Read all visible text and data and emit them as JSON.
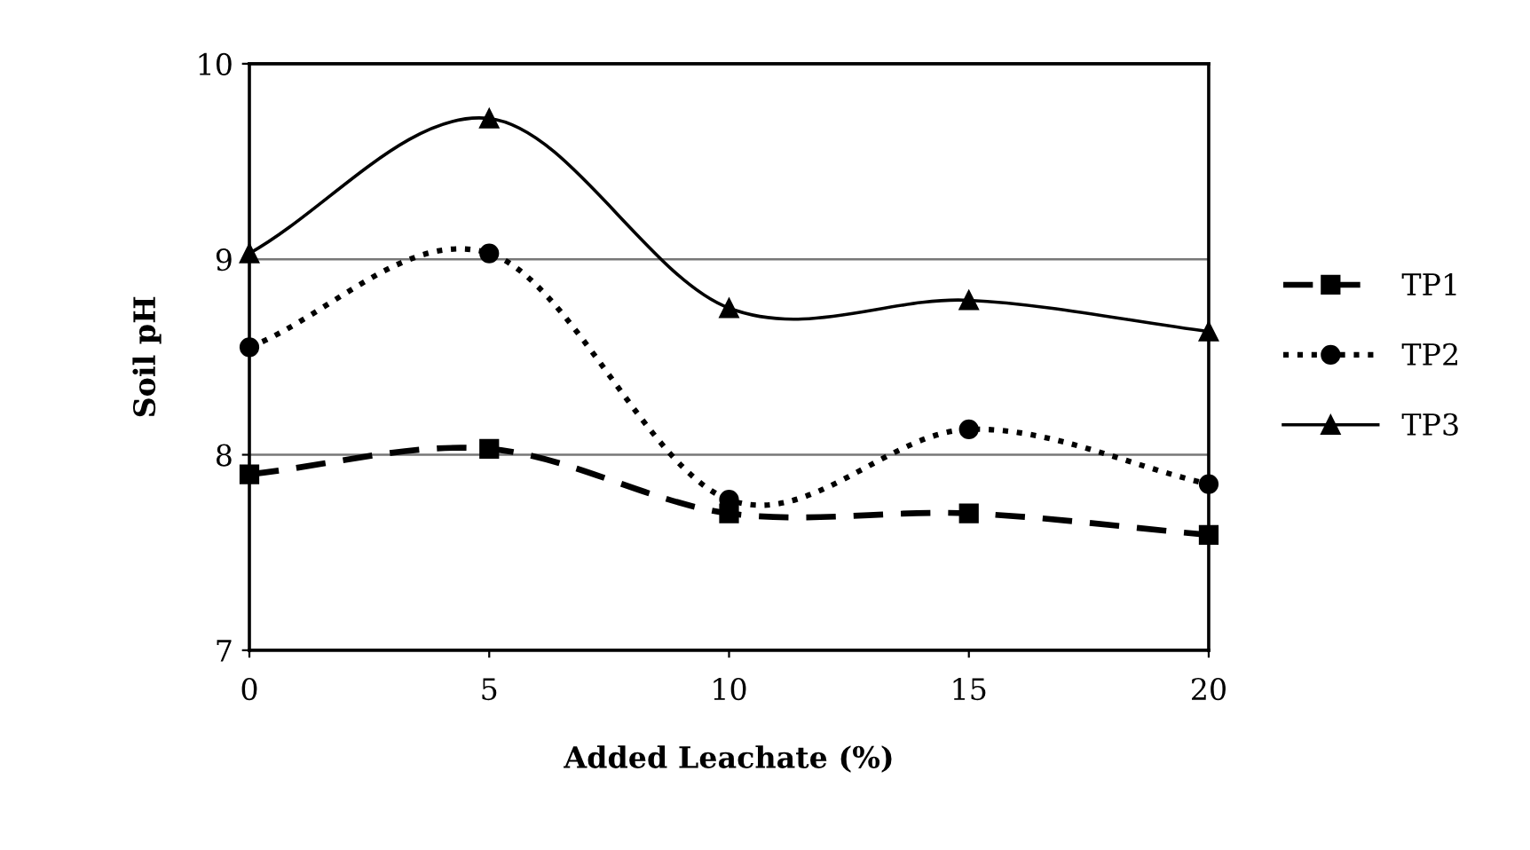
{
  "chart_data": {
    "type": "line",
    "xlabel": "Added Leachate (%)",
    "ylabel": "Soil pH",
    "x": [
      0,
      5,
      10,
      15,
      20
    ],
    "series": [
      {
        "name": "TP1",
        "color": "#000000",
        "values": [
          7.9,
          8.03,
          7.7,
          7.7,
          7.59
        ],
        "marker": "square",
        "line_style": "dashed"
      },
      {
        "name": "TP2",
        "color": "#000000",
        "values": [
          8.55,
          9.03,
          7.77,
          8.13,
          7.85
        ],
        "marker": "circle",
        "line_style": "dotted"
      },
      {
        "name": "TP3",
        "color": "#000000",
        "values": [
          9.03,
          9.72,
          8.75,
          8.79,
          8.63
        ],
        "marker": "triangle",
        "line_style": "solid"
      }
    ],
    "xlim": [
      0,
      20
    ],
    "xticks": [
      0,
      5,
      10,
      15,
      20
    ],
    "ylim": [
      7,
      10
    ],
    "yticks": [
      7,
      8,
      9,
      10
    ],
    "grid": "y",
    "legend": "right"
  }
}
